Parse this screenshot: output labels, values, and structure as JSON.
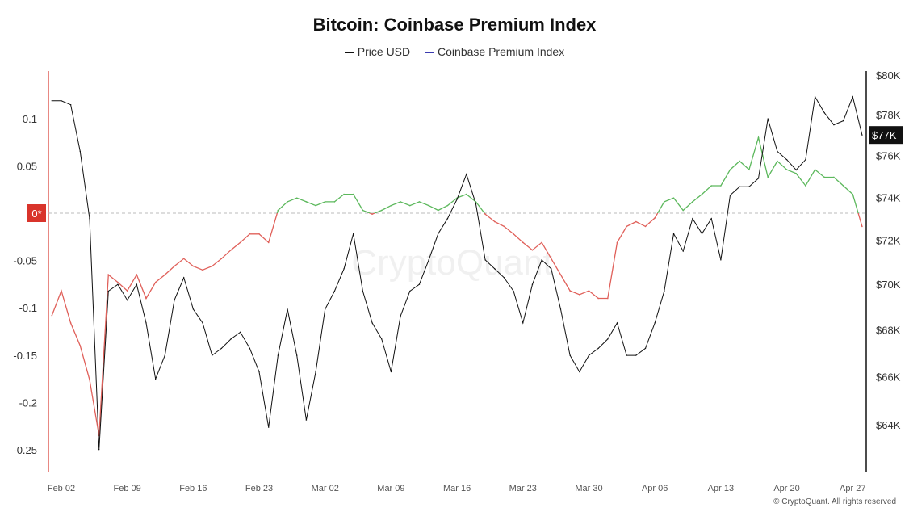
{
  "chart_data": {
    "type": "line",
    "title": "Bitcoin: Coinbase Premium Index",
    "legend": [
      {
        "name": "Price USD",
        "color": "#111111"
      },
      {
        "name": "Coinbase Premium Index",
        "color": "#3b3bb0"
      }
    ],
    "legend_placement": "top-center",
    "start_date": "Feb 01",
    "x_tick_labels": [
      "Feb 02",
      "Feb 09",
      "Feb 16",
      "Feb 23",
      "Mar 02",
      "Mar 09",
      "Mar 16",
      "Mar 23",
      "Mar 30",
      "Apr 06",
      "Apr 13",
      "Apr 20",
      "Apr 27"
    ],
    "x_tick_day_index": [
      1,
      8,
      15,
      22,
      29,
      36,
      43,
      50,
      57,
      64,
      71,
      78,
      85
    ],
    "left_axis": {
      "ticks": [
        0.1,
        0.05,
        -0.05,
        -0.1,
        -0.15,
        -0.2,
        -0.25
      ],
      "tick_labels": [
        "0.1",
        "0.05",
        "-0.05",
        "-0.1",
        "-0.15",
        "-0.2",
        "-0.25"
      ],
      "range": [
        -0.27,
        0.145
      ],
      "zero_label": "0*"
    },
    "right_axis": {
      "scale": "log",
      "ticks": [
        80,
        78,
        76,
        74,
        72,
        70,
        68,
        66,
        64
      ],
      "tick_labels": [
        "$80K",
        "$78K",
        "$76K",
        "$74K",
        "$72K",
        "$70K",
        "$68K",
        "$66K",
        "$64K"
      ],
      "current_label": "$77K",
      "current_value": 77
    },
    "positive_color": "#5cb85c",
    "negative_color": "#e0605a",
    "series": [
      {
        "name": "Price USD",
        "unit": "thousand USD",
        "axis": "right",
        "values": [
          78.7,
          78.7,
          78.5,
          76.2,
          73.0,
          63.0,
          69.7,
          70.0,
          69.3,
          70.0,
          68.3,
          65.9,
          66.9,
          69.3,
          70.3,
          68.9,
          68.3,
          66.9,
          67.2,
          67.6,
          67.9,
          67.2,
          66.2,
          63.9,
          66.9,
          68.9,
          66.9,
          64.2,
          66.2,
          68.9,
          69.7,
          70.7,
          72.3,
          69.7,
          68.3,
          67.6,
          66.2,
          68.6,
          69.7,
          70.0,
          71.1,
          72.3,
          73.0,
          73.9,
          75.1,
          73.7,
          71.1,
          70.7,
          70.3,
          69.7,
          68.3,
          70.0,
          71.1,
          70.7,
          68.9,
          66.9,
          66.2,
          66.9,
          67.2,
          67.6,
          68.3,
          66.9,
          66.9,
          67.2,
          68.3,
          69.7,
          72.3,
          71.5,
          73.0,
          72.3,
          73.0,
          71.1,
          74.1,
          74.5,
          74.5,
          74.9,
          77.8,
          76.2,
          75.8,
          75.3,
          75.8,
          78.9,
          78.1,
          77.5,
          77.7,
          78.9,
          77.0
        ]
      },
      {
        "name": "Coinbase Premium Index",
        "axis": "left",
        "values": [
          -0.108,
          -0.082,
          -0.116,
          -0.14,
          -0.176,
          -0.235,
          -0.065,
          -0.073,
          -0.082,
          -0.065,
          -0.09,
          -0.073,
          -0.065,
          -0.056,
          -0.048,
          -0.056,
          -0.06,
          -0.056,
          -0.048,
          -0.039,
          -0.031,
          -0.022,
          -0.022,
          -0.031,
          0.003,
          0.012,
          0.016,
          0.012,
          0.008,
          0.012,
          0.012,
          0.02,
          0.02,
          0.003,
          -0.001,
          0.003,
          0.008,
          0.012,
          0.008,
          0.012,
          0.008,
          0.003,
          0.008,
          0.016,
          0.02,
          0.012,
          -0.001,
          -0.009,
          -0.014,
          -0.022,
          -0.031,
          -0.039,
          -0.031,
          -0.048,
          -0.065,
          -0.082,
          -0.086,
          -0.082,
          -0.09,
          -0.09,
          -0.031,
          -0.014,
          -0.009,
          -0.014,
          -0.005,
          0.012,
          0.016,
          0.003,
          0.012,
          0.02,
          0.029,
          0.029,
          0.046,
          0.055,
          0.046,
          0.08,
          0.038,
          0.055,
          0.046,
          0.042,
          0.029,
          0.046,
          0.038,
          0.038,
          0.029,
          0.02,
          -0.014
        ]
      }
    ]
  },
  "watermark": "CryptoQuant",
  "footer": "© CryptoQuant. All rights reserved"
}
